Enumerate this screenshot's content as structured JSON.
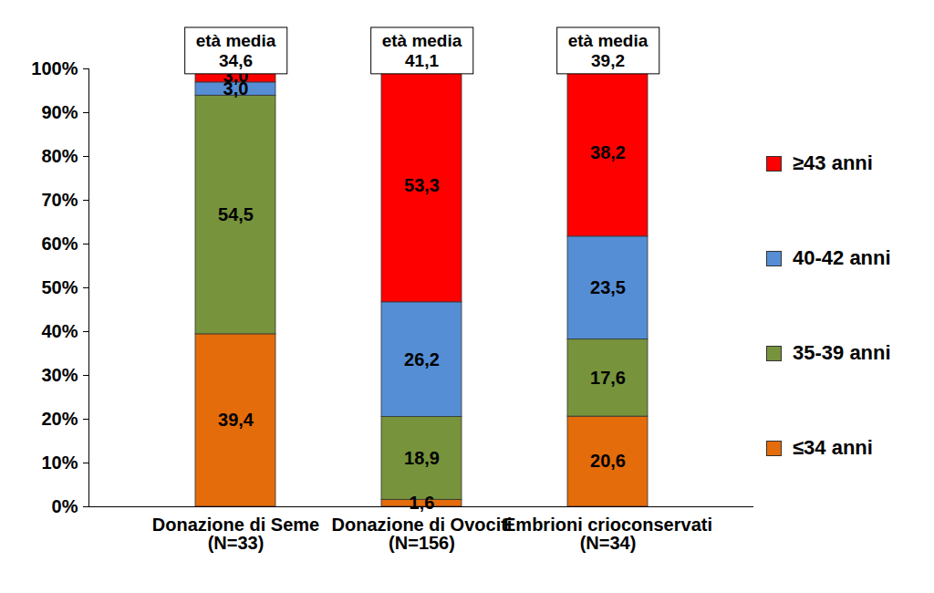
{
  "chart_data": {
    "type": "bar",
    "stacked": true,
    "data_labels": true,
    "legend": "right",
    "categories": [
      "Donazione di Seme\n(N=33)",
      "Donazione di Ovociti\n(N=156)",
      "Embrioni crioconservati\n(N=34)"
    ],
    "series": [
      {
        "name": "≤34 anni",
        "color": "#E46C0A",
        "values": [
          39.4,
          1.6,
          20.6
        ],
        "value_labels": [
          "39,4",
          "1,6",
          "20,6"
        ]
      },
      {
        "name": "35-39 anni",
        "color": "#77933C",
        "values": [
          54.5,
          18.9,
          17.6
        ],
        "value_labels": [
          "54,5",
          "18,9",
          "17,6"
        ]
      },
      {
        "name": "40-42 anni",
        "color": "#558ED5",
        "values": [
          3.0,
          26.2,
          23.5
        ],
        "value_labels": [
          "3,0",
          "26,2",
          "23,5"
        ]
      },
      {
        "name": "≥43 anni",
        "color": "#FF0000",
        "values": [
          3.0,
          53.3,
          38.2
        ],
        "value_labels": [
          "3,0",
          "53,3",
          "38,2"
        ]
      }
    ],
    "ylim": [
      0,
      100
    ],
    "yticks": [
      {
        "value": 0,
        "label": "0%"
      },
      {
        "value": 10,
        "label": "10%"
      },
      {
        "value": 20,
        "label": "20%"
      },
      {
        "value": 30,
        "label": "30%"
      },
      {
        "value": 40,
        "label": "40%"
      },
      {
        "value": 50,
        "label": "50%"
      },
      {
        "value": 60,
        "label": "60%"
      },
      {
        "value": 70,
        "label": "70%"
      },
      {
        "value": 80,
        "label": "80%"
      },
      {
        "value": 90,
        "label": "90%"
      },
      {
        "value": 100,
        "label": "100%"
      }
    ],
    "mean_age": {
      "label": "età media",
      "values": [
        34.6,
        41.1,
        39.2
      ],
      "value_labels": [
        "34,6",
        "41,1",
        "39,2"
      ]
    }
  }
}
